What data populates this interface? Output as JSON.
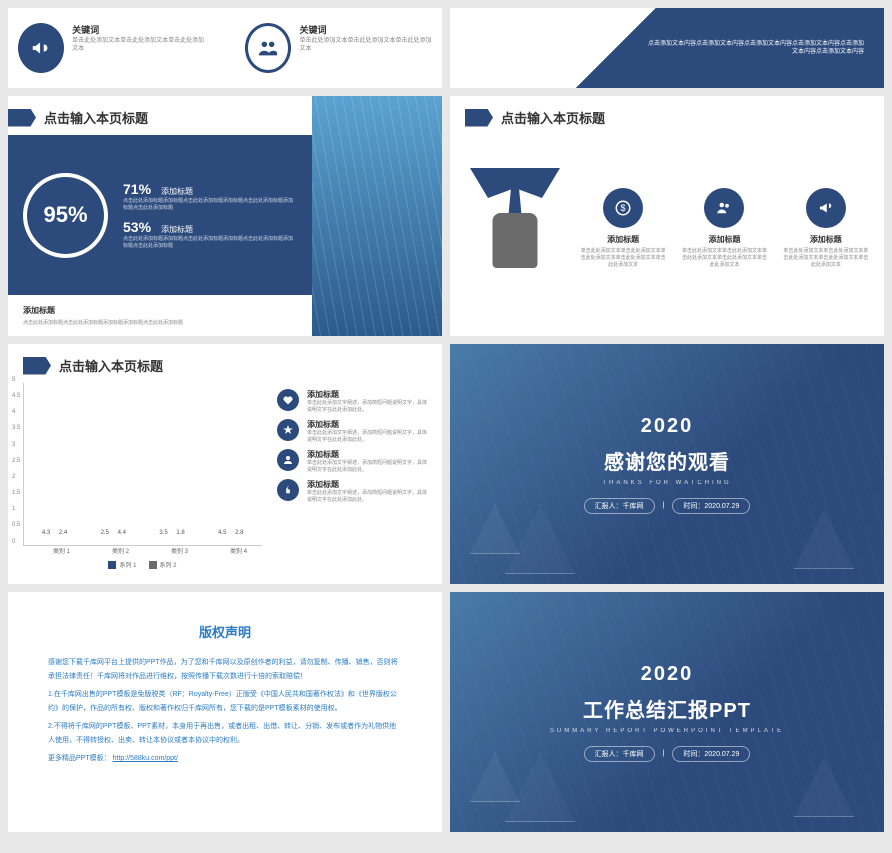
{
  "colors": {
    "primary": "#2c4a7c",
    "gray": "#6b6b6b",
    "link": "#2c7cc4"
  },
  "row1": {
    "left": {
      "keywords": [
        {
          "label": "关键词",
          "desc": "单击此处添加文本单击此处添加文本单击此处添加文本"
        },
        {
          "label": "关键词",
          "desc": "单击此处添加文本单击此处添加文本单击此处添加文本"
        }
      ]
    },
    "right": {
      "text": "点击添加文本内容点击添加文本内容点击添加文本内容点击添加文本内容点击添加文本内容点击添加文本内容"
    }
  },
  "slide_95": {
    "title": "点击输入本页标题",
    "big_percent": "95%",
    "bars": [
      {
        "pct": "71%",
        "label": "添加标题",
        "desc": "点击此处添加标题添加标题点击此处添加标题添加标题点击此处添加标题添加标题点击此处添加标题"
      },
      {
        "pct": "53%",
        "label": "添加标题",
        "desc": "点击此处添加标题添加标题点击此处添加标题添加标题点击此处添加标题添加标题点击此处添加标题"
      }
    ],
    "footer": {
      "label": "添加标题",
      "desc": "点击此处添加标题点击此处添加标题添加标题添加标题点击此处添加标题"
    }
  },
  "slide_tie": {
    "title": "点击输入本页标题",
    "cols": [
      {
        "icon": "money",
        "label": "添加标题",
        "desc": "单击此处添加文本单击此处添加文本单击此处添加文本单击此处添加文本单击此处添加文本"
      },
      {
        "icon": "users",
        "label": "添加标题",
        "desc": "单击此处添加文本单击此处添加文本单击此处添加文本单击此处添加文本单击此处添加文本"
      },
      {
        "icon": "horn",
        "label": "添加标题",
        "desc": "单击此处添加文本单击此处添加文本单击此处添加文本单击此处添加文本单击此处添加文本"
      }
    ]
  },
  "slide_chart": {
    "title": "点击输入本页标题",
    "chart": {
      "type": "bar",
      "ylim": [
        0,
        5
      ],
      "ytick_step": 0.5,
      "categories": [
        "类别 1",
        "类别 2",
        "类别 3",
        "类别 4"
      ],
      "series": [
        {
          "name": "系列 1",
          "color": "#2c4a7c",
          "values": [
            4.3,
            2.5,
            3.5,
            4.5
          ]
        },
        {
          "name": "系列 2",
          "color": "#6b6b6b",
          "values": [
            2.4,
            4.4,
            1.8,
            2.8
          ]
        }
      ]
    },
    "legend": [
      {
        "icon": "heart",
        "label": "添加标题",
        "desc": "单击此处添加文字阐述，添加简短问题说明文字，具体说明文字在此处添加此处。"
      },
      {
        "icon": "star",
        "label": "添加标题",
        "desc": "单击此处添加文字阐述，添加简短问题说明文字，具体说明文字在此处添加此处。"
      },
      {
        "icon": "user",
        "label": "添加标题",
        "desc": "单击此处添加文字阐述，添加简短问题说明文字，具体说明文字在此处添加此处。"
      },
      {
        "icon": "flame",
        "label": "添加标题",
        "desc": "单击此处添加文字阐述，添加简短问题说明文字，具体说明文字在此处添加此处。"
      }
    ]
  },
  "thanks": {
    "year": "2020",
    "title": "感谢您的观看",
    "sub": "THANKS FOR WATCHING",
    "reporter_label": "汇报人：",
    "reporter": "千库网",
    "time_label": "时间：",
    "time": "2020.07.29"
  },
  "copyright": {
    "heading": "版权声明",
    "p1": "感谢您下载千库网平台上提供的PPT作品，为了您和千库网以及原创作者的利益，请勿复制、传播、销售，否则将承担法律责任！千库网将对作品进行维权，按照传播下载次数进行十倍的索取赔偿！",
    "p2": "1.在千库网出售的PPT模板是免版税类（RF：Royalty-Free）正版受《中国人民共和国著作权法》和《世界版权公约》的保护，作品的所有权、版权和著作权归千库网所有，您下载的是PPT模板素材的使用权。",
    "p3": "2.不得将千库网的PPT模板、PPT素材，本身用于再出售，或者出租、出借、转让、分销、发布或者作为礼物供他人使用，不得转授权、出卖、转让本协议或者本协议中的权利。",
    "more_label": "更多精品PPT模板：",
    "more_link": "http://588ku.com/ppt/"
  },
  "cover": {
    "year": "2020",
    "title": "工作总结汇报PPT",
    "sub": "SUMMARY REPORT POWERPOINT TEMPLATE",
    "reporter_label": "汇报人：",
    "reporter": "千库网",
    "time_label": "时间：",
    "time": "2020.07.29"
  }
}
